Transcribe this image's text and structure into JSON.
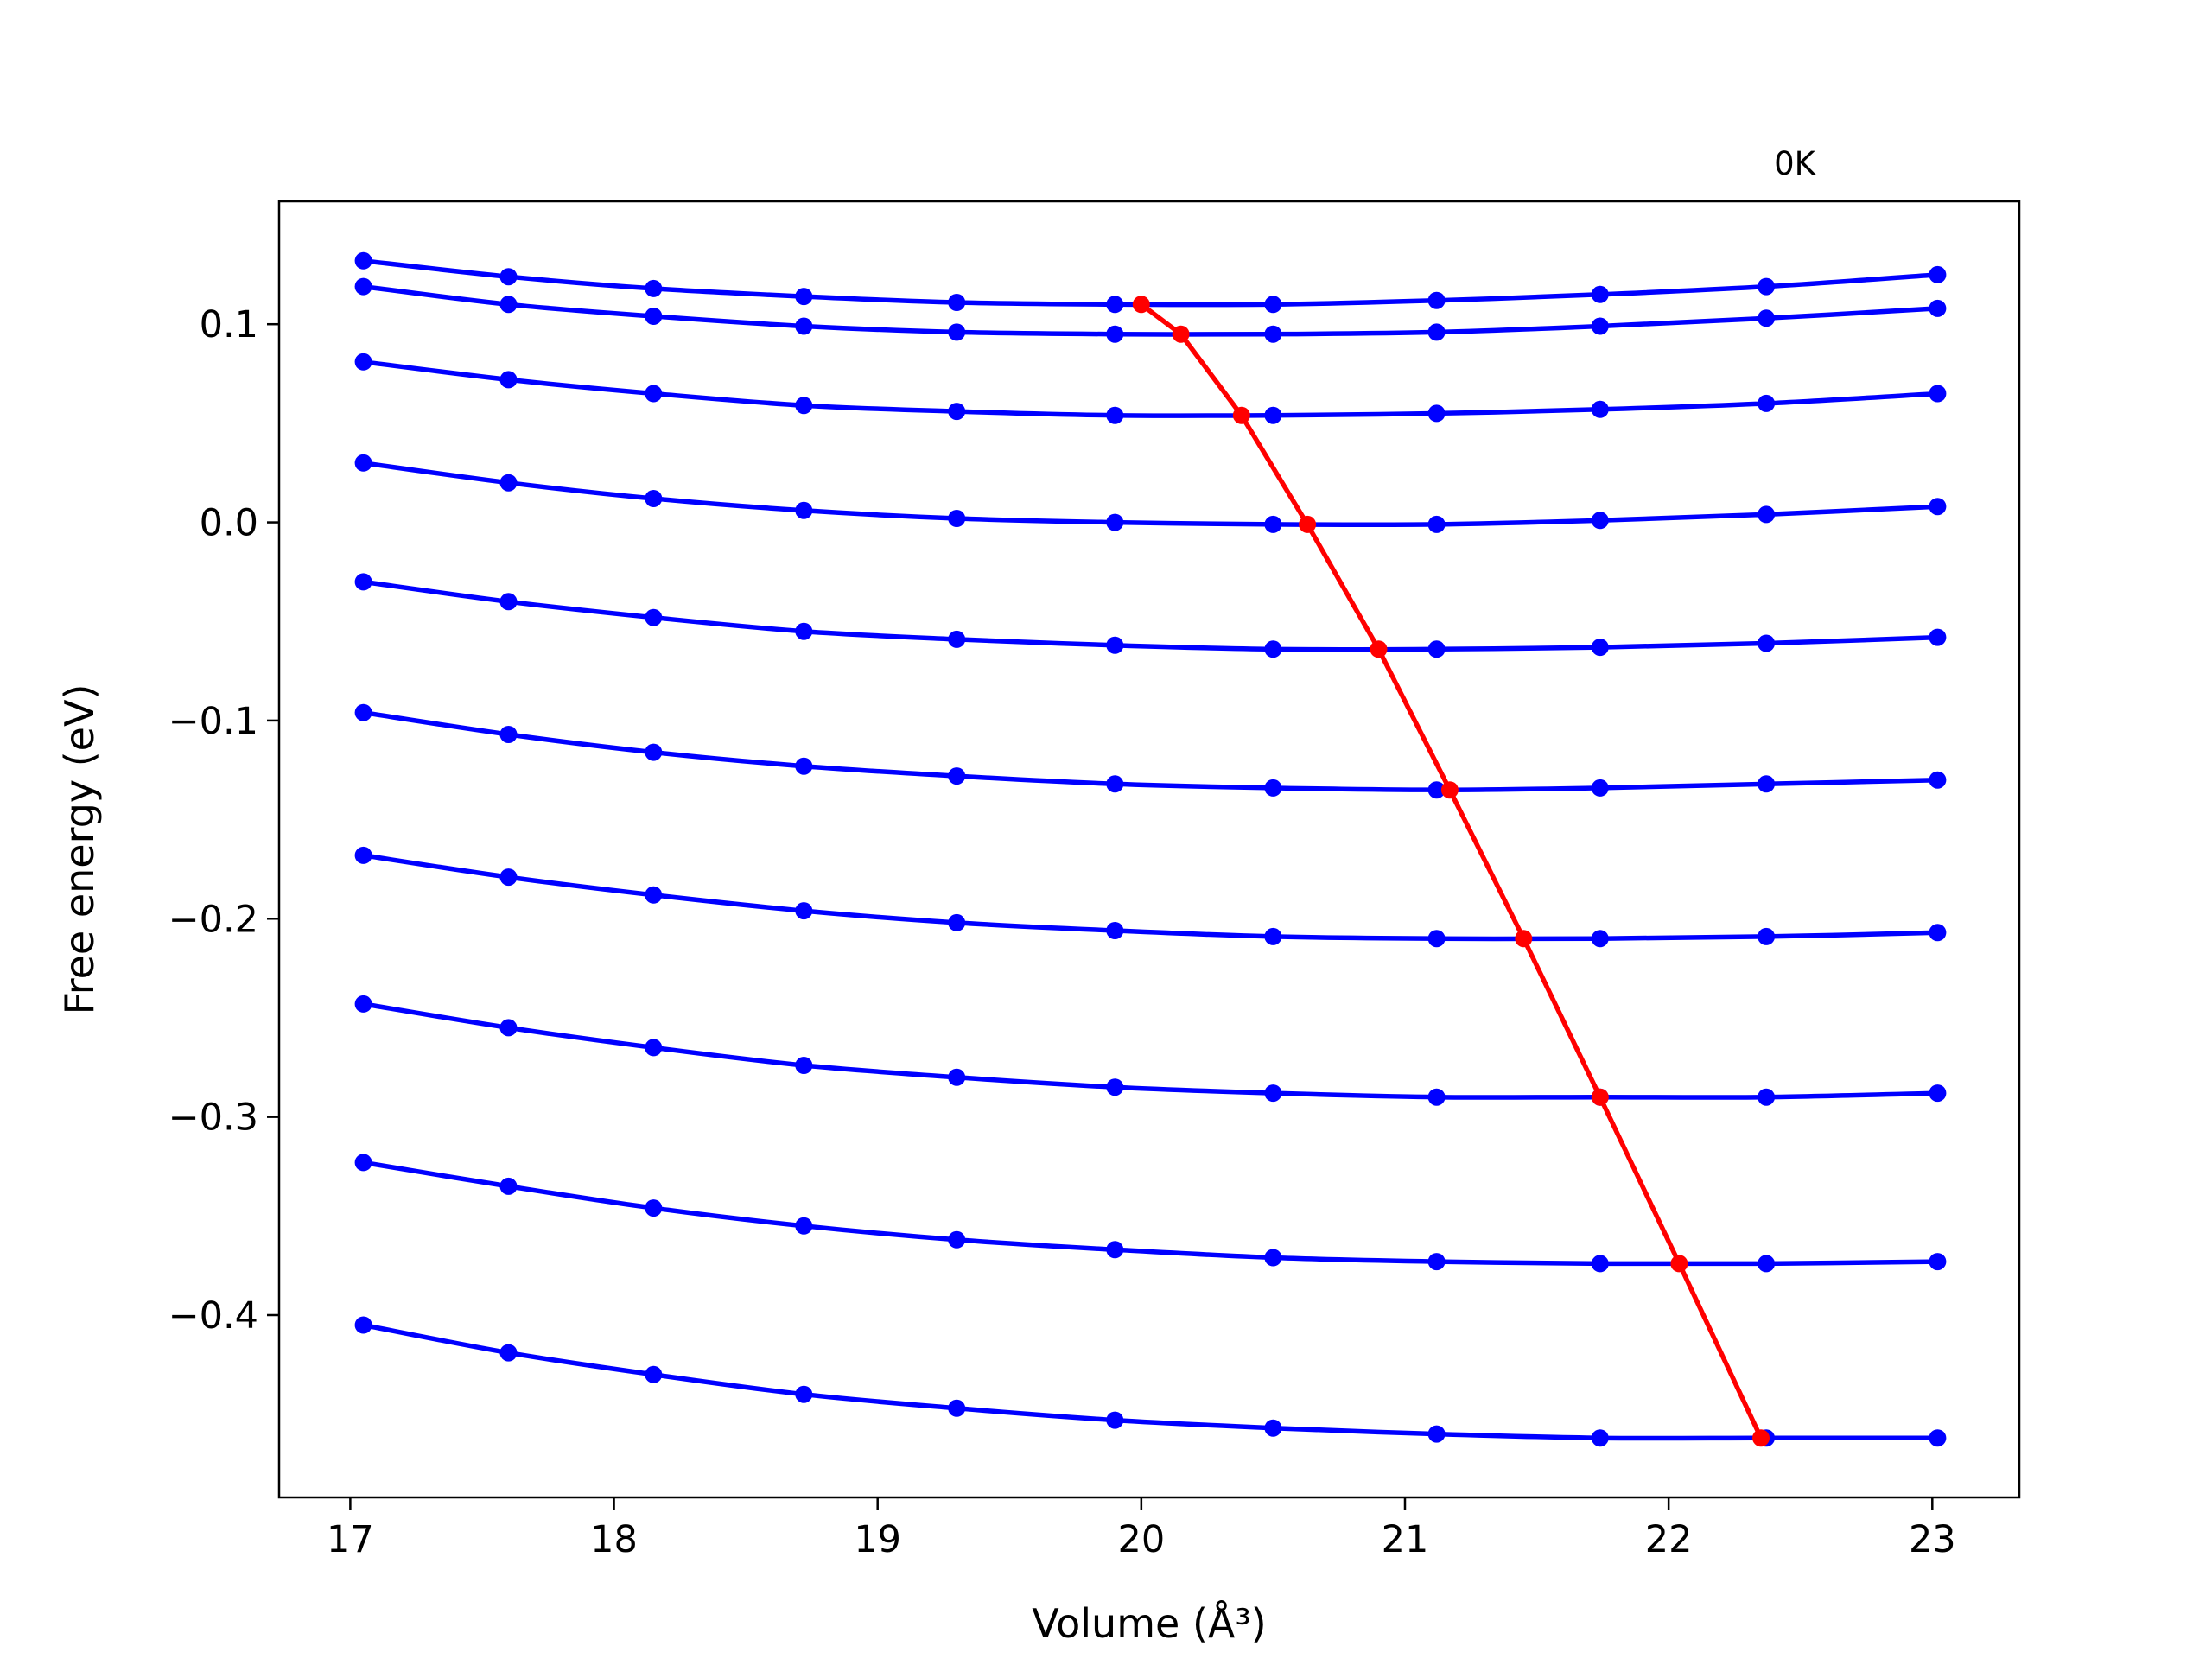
{
  "chart_data": {
    "type": "line",
    "title": "",
    "annotation": "0K",
    "xlabel": "Volume (Å³)",
    "ylabel": "Free energy (eV)",
    "xlim": [
      16.73,
      23.33
    ],
    "ylim": [
      -0.492,
      0.162
    ],
    "xticks": [
      17,
      18,
      19,
      20,
      21,
      22,
      23
    ],
    "xtick_labels": [
      "17",
      "18",
      "19",
      "20",
      "21",
      "22",
      "23"
    ],
    "yticks": [
      0.1,
      0.0,
      -0.1,
      -0.2,
      -0.3,
      -0.4
    ],
    "ytick_labels": [
      "0.1",
      "0.0",
      "−0.1",
      "−0.2",
      "−0.3",
      "−0.4"
    ],
    "grid": false,
    "x": [
      17.05,
      17.6,
      18.15,
      18.72,
      19.3,
      19.9,
      20.5,
      21.12,
      21.74,
      22.37,
      23.02
    ],
    "series": [
      {
        "color": "#0000ff",
        "values": [
          0.132,
          0.124,
          0.118,
          0.114,
          0.111,
          0.11,
          0.11,
          0.112,
          0.115,
          0.119,
          0.125
        ]
      },
      {
        "color": "#0000ff",
        "values": [
          0.119,
          0.11,
          0.104,
          0.099,
          0.096,
          0.095,
          0.095,
          0.096,
          0.099,
          0.103,
          0.108
        ]
      },
      {
        "color": "#0000ff",
        "values": [
          0.081,
          0.072,
          0.065,
          0.059,
          0.056,
          0.054,
          0.054,
          0.055,
          0.057,
          0.06,
          0.065
        ]
      },
      {
        "color": "#0000ff",
        "values": [
          0.03,
          0.02,
          0.012,
          0.006,
          0.002,
          0.0,
          -0.001,
          -0.001,
          0.001,
          0.004,
          0.008
        ]
      },
      {
        "color": "#0000ff",
        "values": [
          -0.03,
          -0.04,
          -0.048,
          -0.055,
          -0.059,
          -0.062,
          -0.064,
          -0.064,
          -0.063,
          -0.061,
          -0.058
        ]
      },
      {
        "color": "#0000ff",
        "values": [
          -0.096,
          -0.107,
          -0.116,
          -0.123,
          -0.128,
          -0.132,
          -0.134,
          -0.135,
          -0.134,
          -0.132,
          -0.13
        ]
      },
      {
        "color": "#0000ff",
        "values": [
          -0.168,
          -0.179,
          -0.188,
          -0.196,
          -0.202,
          -0.206,
          -0.209,
          -0.21,
          -0.21,
          -0.209,
          -0.207
        ]
      },
      {
        "color": "#0000ff",
        "values": [
          -0.243,
          -0.255,
          -0.265,
          -0.274,
          -0.28,
          -0.285,
          -0.288,
          -0.29,
          -0.29,
          -0.29,
          -0.288
        ]
      },
      {
        "color": "#0000ff",
        "values": [
          -0.323,
          -0.335,
          -0.346,
          -0.355,
          -0.362,
          -0.367,
          -0.371,
          -0.373,
          -0.374,
          -0.374,
          -0.373
        ]
      },
      {
        "color": "#0000ff",
        "values": [
          -0.405,
          -0.419,
          -0.43,
          -0.44,
          -0.447,
          -0.453,
          -0.457,
          -0.46,
          -0.462,
          -0.462,
          -0.462
        ]
      }
    ],
    "minima": {
      "color": "#ff0000",
      "x": [
        20.0,
        20.15,
        20.38,
        20.63,
        20.9,
        21.17,
        21.45,
        21.74,
        22.04,
        22.35
      ],
      "y": [
        0.11,
        0.095,
        0.054,
        -0.001,
        -0.064,
        -0.135,
        -0.21,
        -0.29,
        -0.374,
        -0.462
      ]
    }
  }
}
